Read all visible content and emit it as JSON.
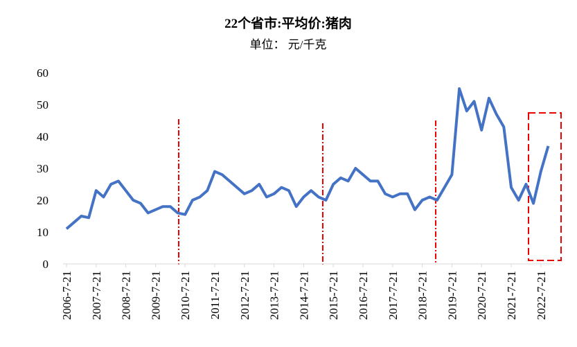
{
  "chart_data": {
    "type": "line",
    "title": "22个省市:平均价:猪肉",
    "subtitle": "单位：  元/千克",
    "categories": [
      "2006-7-21",
      null,
      null,
      null,
      "2007-7-21",
      null,
      null,
      null,
      "2008-7-21",
      null,
      null,
      null,
      "2009-7-21",
      null,
      null,
      null,
      "2010-7-21",
      null,
      null,
      null,
      "2011-7-21",
      null,
      null,
      null,
      "2012-7-21",
      null,
      null,
      null,
      "2013-7-21",
      null,
      null,
      null,
      "2014-7-21",
      null,
      null,
      null,
      "2015-7-21",
      null,
      null,
      null,
      "2016-7-21",
      null,
      null,
      null,
      "2017-7-21",
      null,
      null,
      null,
      "2018-7-21",
      null,
      null,
      null,
      "2019-7-21",
      null,
      null,
      null,
      "2020-7-21",
      null,
      null,
      null,
      "2021-7-21",
      null,
      null,
      null,
      "2022-7-21",
      null
    ],
    "series": [
      {
        "name": "猪肉",
        "color": "#4472c4",
        "values": [
          11,
          13,
          15,
          14.5,
          23,
          21,
          25,
          26,
          23,
          20,
          19,
          16,
          17,
          18,
          18,
          16,
          15.5,
          20,
          21,
          23,
          29,
          28,
          26,
          24,
          22,
          23,
          25,
          21,
          22,
          24,
          23,
          18,
          21,
          23,
          21,
          20,
          25,
          27,
          26,
          30,
          28,
          26,
          26,
          22,
          21,
          22,
          22,
          17,
          20,
          21,
          20,
          24,
          28,
          55,
          48,
          51,
          42,
          52,
          47,
          43,
          24,
          20,
          25,
          19,
          29,
          37
        ]
      }
    ],
    "ylim": [
      0,
      60
    ],
    "yticks": [
      0,
      10,
      20,
      30,
      40,
      50,
      60
    ]
  }
}
